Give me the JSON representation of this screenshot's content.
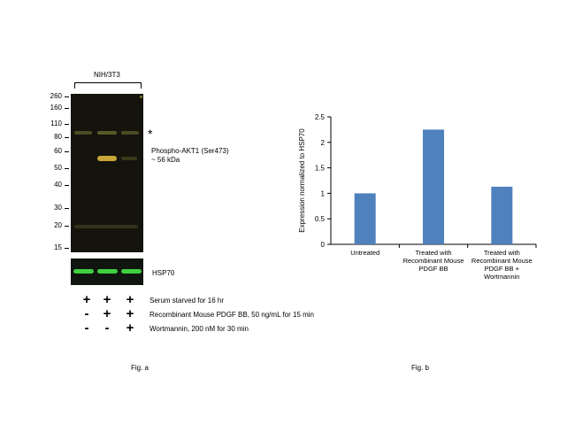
{
  "panel_a": {
    "cell_line": "NIH/3T3",
    "mw_markers": [
      "260",
      "160",
      "110",
      "80",
      "60",
      "50",
      "40",
      "30",
      "20",
      "15"
    ],
    "asterisk": "*",
    "band_label_line1": "Phospho-AKT1 (Ser473)",
    "band_label_line2": "~ 56 kDa",
    "loading_control": "HSP70",
    "treatments": [
      {
        "label": "Serum starved for 16 hr",
        "lanes": [
          "+",
          "+",
          "+"
        ]
      },
      {
        "label": "Recombinant Mouse PDGF BB, 50 ng/mL for 15 min",
        "lanes": [
          "-",
          "+",
          "+"
        ]
      },
      {
        "label": "Wortmannin, 200 nM for 30 min",
        "lanes": [
          "-",
          "-",
          "+"
        ]
      }
    ],
    "caption": "Fig. a",
    "colors": {
      "band_main": "#c9a63a",
      "band_hsp": "#3fcf3f",
      "blot_bg": "#14140d"
    }
  },
  "panel_b": {
    "caption": "Fig. b",
    "chart_data": {
      "type": "bar",
      "categories": [
        "Untreated",
        "Treated with Recombinant Mouse PDGF BB",
        "Treated with Recombinant Mouse PDGF BB + Wortmannin"
      ],
      "category_lines": [
        [
          "Untreated"
        ],
        [
          "Treated with",
          "Recombinant Mouse",
          "PDGF BB"
        ],
        [
          "Treated with",
          "Recombinant Mouse",
          "PDGF BB +",
          "Wortmannin"
        ]
      ],
      "values": [
        1.0,
        2.25,
        1.13
      ],
      "ylabel": "Expression  normalized to HSP70",
      "ylim": [
        0,
        2.5
      ],
      "yticks": [
        "0",
        "0.5",
        "1",
        "1.5",
        "2",
        "2.5"
      ],
      "bar_color": "#4f81bd",
      "grid": false
    }
  }
}
